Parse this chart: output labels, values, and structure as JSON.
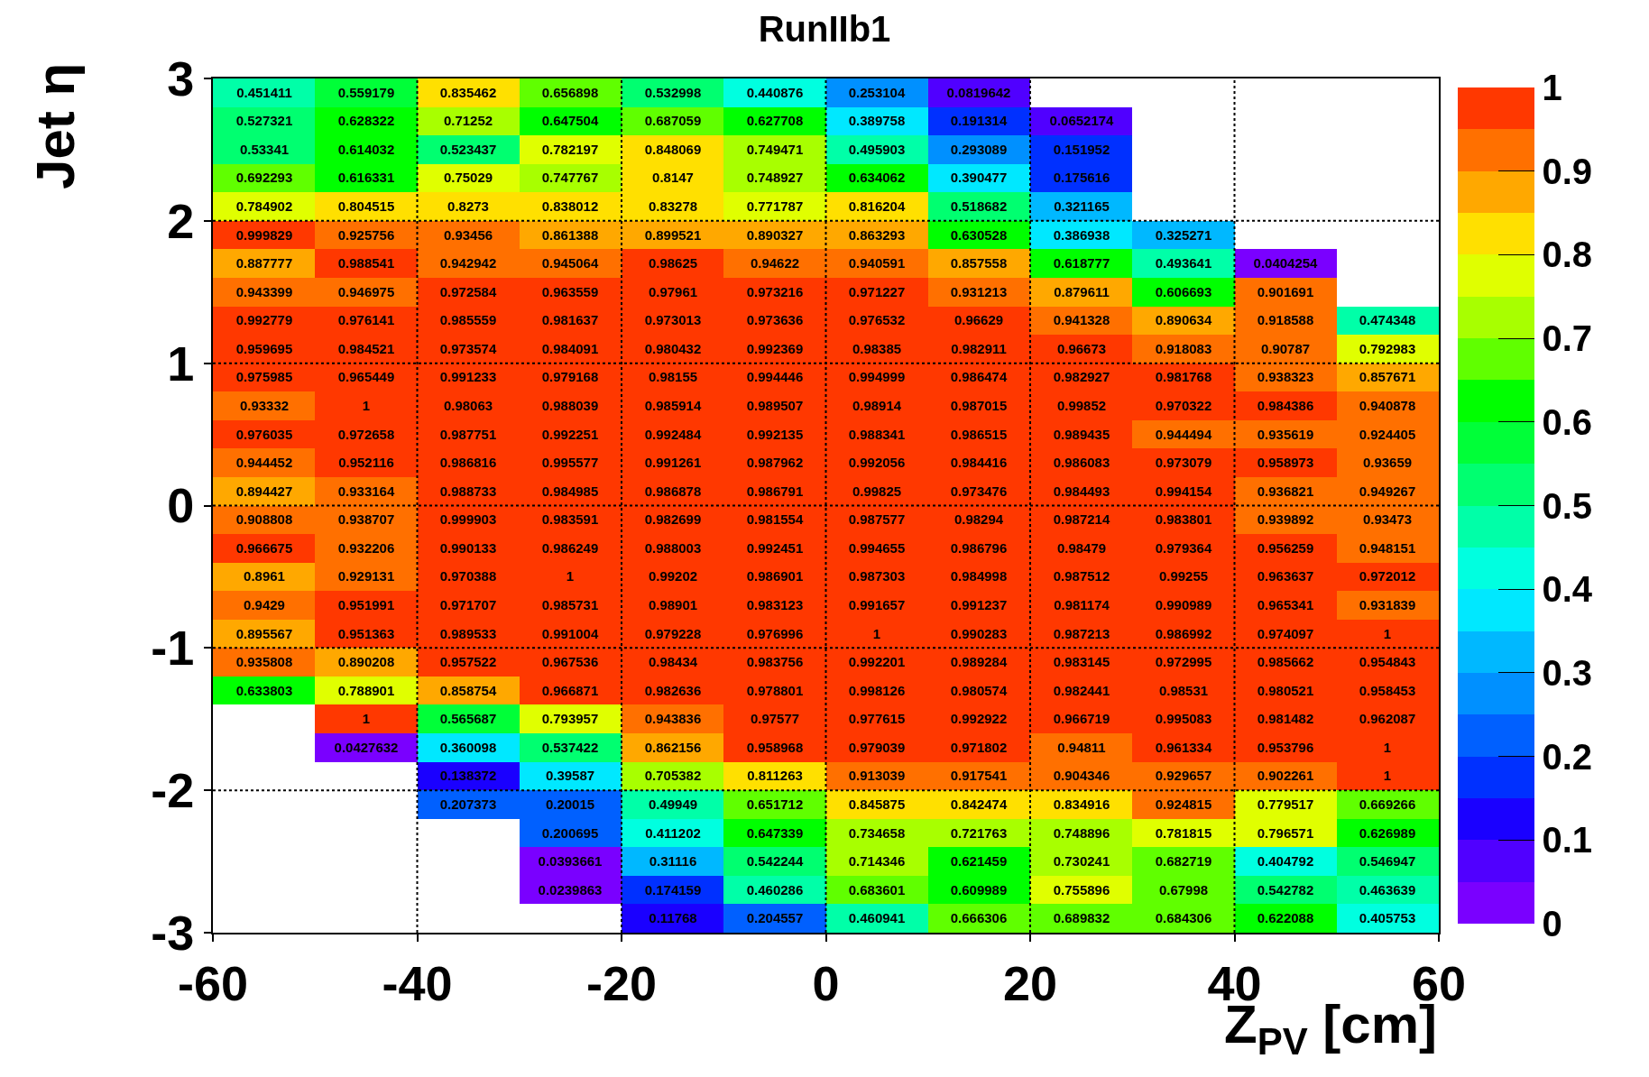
{
  "chart_data": {
    "type": "heatmap",
    "title": "RunIIb1",
    "xlabel": "Z$_{PV}$ [cm]",
    "ylabel": "Jet η",
    "xlim": [
      -60,
      60
    ],
    "xticks": [
      -60,
      -40,
      -20,
      0,
      20,
      40,
      60
    ],
    "ylim": [
      -3,
      3
    ],
    "yticks": [
      -3,
      -2,
      -1,
      0,
      1,
      2,
      3
    ],
    "clim": [
      0,
      1
    ],
    "cticks": [
      0,
      0.1,
      0.2,
      0.3,
      0.4,
      0.5,
      0.6,
      0.7,
      0.8,
      0.9,
      1
    ],
    "grid": true,
    "data_labels": true,
    "cells": [
      [
        0.451411,
        0.559179,
        0.835462,
        0.656898,
        0.532998,
        0.440876,
        0.253104,
        0.0819642,
        null,
        null,
        null,
        null
      ],
      [
        0.527321,
        0.628322,
        0.71252,
        0.647504,
        0.687059,
        0.627708,
        0.389758,
        0.191314,
        0.0652174,
        null,
        null,
        null
      ],
      [
        0.53341,
        0.614032,
        0.523437,
        0.782197,
        0.848069,
        0.749471,
        0.495903,
        0.293089,
        0.151952,
        null,
        null,
        null
      ],
      [
        0.692293,
        0.616331,
        0.75029,
        0.747767,
        0.8147,
        0.748927,
        0.634062,
        0.390477,
        0.175616,
        null,
        null,
        null
      ],
      [
        0.784902,
        0.804515,
        0.8273,
        0.838012,
        0.83278,
        0.771787,
        0.816204,
        0.518682,
        0.321165,
        null,
        null,
        null
      ],
      [
        0.999829,
        0.925756,
        0.93456,
        0.861388,
        0.899521,
        0.890327,
        0.863293,
        0.630528,
        0.386938,
        0.325271,
        null,
        null
      ],
      [
        0.887777,
        0.988541,
        0.942942,
        0.945064,
        0.98625,
        0.94622,
        0.940591,
        0.857558,
        0.618777,
        0.493641,
        0.0404254,
        null
      ],
      [
        0.943399,
        0.946975,
        0.972584,
        0.963559,
        0.97961,
        0.973216,
        0.971227,
        0.931213,
        0.879611,
        0.606693,
        0.901691,
        null
      ],
      [
        0.992779,
        0.976141,
        0.985559,
        0.981637,
        0.973013,
        0.973636,
        0.976532,
        0.96629,
        0.941328,
        0.890634,
        0.918588,
        0.474348
      ],
      [
        0.959695,
        0.984521,
        0.973574,
        0.984091,
        0.980432,
        0.992369,
        0.98385,
        0.982911,
        0.96673,
        0.918083,
        0.90787,
        0.792983
      ],
      [
        0.975985,
        0.965449,
        0.991233,
        0.979168,
        0.98155,
        0.994446,
        0.994999,
        0.986474,
        0.982927,
        0.981768,
        0.938323,
        0.857671
      ],
      [
        0.93332,
        1,
        0.98063,
        0.988039,
        0.985914,
        0.989507,
        0.98914,
        0.987015,
        0.99852,
        0.970322,
        0.984386,
        0.940878
      ],
      [
        0.976035,
        0.972658,
        0.987751,
        0.992251,
        0.992484,
        0.992135,
        0.988341,
        0.986515,
        0.989435,
        0.944494,
        0.935619,
        0.924405
      ],
      [
        0.944452,
        0.952116,
        0.986816,
        0.995577,
        0.991261,
        0.987962,
        0.992056,
        0.984416,
        0.986083,
        0.973079,
        0.958973,
        0.93659
      ],
      [
        0.894427,
        0.933164,
        0.988733,
        0.984985,
        0.986878,
        0.986791,
        0.99825,
        0.973476,
        0.984493,
        0.994154,
        0.936821,
        0.949267
      ],
      [
        0.908808,
        0.938707,
        0.999903,
        0.983591,
        0.982699,
        0.981554,
        0.987577,
        0.98294,
        0.987214,
        0.983801,
        0.939892,
        0.93473
      ],
      [
        0.966675,
        0.932206,
        0.990133,
        0.986249,
        0.988003,
        0.992451,
        0.994655,
        0.986796,
        0.98479,
        0.979364,
        0.956259,
        0.948151
      ],
      [
        0.8961,
        0.929131,
        0.970388,
        1,
        0.99202,
        0.986901,
        0.987303,
        0.984998,
        0.987512,
        0.99255,
        0.963637,
        0.972012
      ],
      [
        0.9429,
        0.951991,
        0.971707,
        0.985731,
        0.98901,
        0.983123,
        0.991657,
        0.991237,
        0.981174,
        0.990989,
        0.965341,
        0.931839
      ],
      [
        0.895567,
        0.951363,
        0.989533,
        0.991004,
        0.979228,
        0.976996,
        1,
        0.990283,
        0.987213,
        0.986992,
        0.974097,
        1
      ],
      [
        0.935808,
        0.890208,
        0.957522,
        0.967536,
        0.98434,
        0.983756,
        0.992201,
        0.989284,
        0.983145,
        0.972995,
        0.985662,
        0.954843
      ],
      [
        0.633803,
        0.788901,
        0.858754,
        0.966871,
        0.982636,
        0.978801,
        0.998126,
        0.980574,
        0.982441,
        0.98531,
        0.980521,
        0.958453
      ],
      [
        null,
        1,
        0.565687,
        0.793957,
        0.943836,
        0.97577,
        0.977615,
        0.992922,
        0.966719,
        0.995083,
        0.981482,
        0.962087
      ],
      [
        null,
        0.0427632,
        0.360098,
        0.537422,
        0.862156,
        0.958968,
        0.979039,
        0.971802,
        0.94811,
        0.961334,
        0.953796,
        1
      ],
      [
        null,
        null,
        0.138372,
        0.39587,
        0.705382,
        0.811263,
        0.913039,
        0.917541,
        0.904346,
        0.929657,
        0.902261,
        1
      ],
      [
        null,
        null,
        0.207373,
        0.20015,
        0.49949,
        0.651712,
        0.845875,
        0.842474,
        0.834916,
        0.924815,
        0.779517,
        0.669266
      ],
      [
        null,
        null,
        null,
        0.200695,
        0.411202,
        0.647339,
        0.734658,
        0.721763,
        0.748896,
        0.781815,
        0.796571,
        0.626989
      ],
      [
        null,
        null,
        null,
        0.0393661,
        0.31116,
        0.542244,
        0.714346,
        0.621459,
        0.730241,
        0.682719,
        0.404792,
        0.546947
      ],
      [
        null,
        null,
        null,
        0.0239863,
        0.174159,
        0.460286,
        0.683601,
        0.609989,
        0.755896,
        0.67998,
        0.542782,
        0.463639
      ],
      [
        null,
        null,
        null,
        null,
        0.11768,
        0.204557,
        0.460941,
        0.666306,
        0.689832,
        0.684306,
        0.622088,
        0.405753
      ]
    ]
  }
}
